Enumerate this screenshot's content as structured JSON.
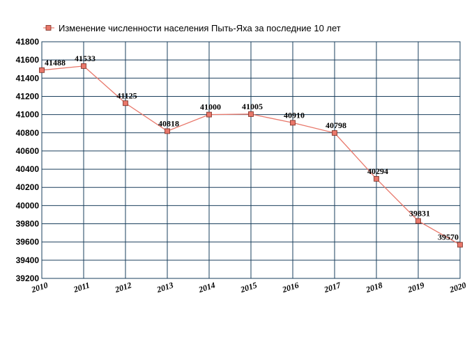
{
  "chart_data": {
    "type": "line",
    "title": "",
    "xlabel": "",
    "ylabel": "",
    "x": [
      "2010",
      "2011",
      "2012",
      "2013",
      "2014",
      "2015",
      "2016",
      "2017",
      "2018",
      "2019",
      "2020"
    ],
    "series": [
      {
        "name": "Изменение численности населения Пыть-Яха за последние 10 лет",
        "values": [
          41488,
          41533,
          41125,
          40818,
          41000,
          41005,
          40910,
          40798,
          40294,
          39831,
          39570
        ],
        "labels": [
          "41488",
          "41533",
          "41125",
          "40818",
          "41000",
          "41005",
          "40910",
          "40798",
          "40294",
          "39831",
          "39570"
        ]
      }
    ],
    "ylim": [
      39200,
      41800
    ],
    "yticks": [
      "39200",
      "39400",
      "39600",
      "39800",
      "40000",
      "40200",
      "40400",
      "40600",
      "40800",
      "41000",
      "41200",
      "41400",
      "41600",
      "41800"
    ],
    "grid": true,
    "legend_position": "top",
    "colors": {
      "line": "#e8776a",
      "marker_fill": "#e8776a",
      "marker_stroke": "#7a2a1f",
      "grid": "#1a3f5c"
    }
  }
}
